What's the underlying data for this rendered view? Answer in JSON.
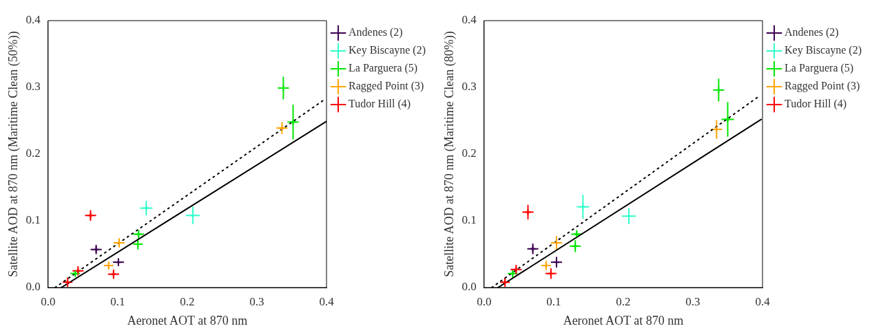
{
  "chart_data": [
    {
      "type": "scatter",
      "ylabel": "Satellite AOD at 870 nm (Maritime Clean (50%))",
      "xlabel": "Aeronet AOT at 870 nm",
      "xlim": [
        0,
        0.4
      ],
      "ylim": [
        0,
        0.4
      ],
      "xticks": [
        {
          "value": 0,
          "label": "0.0"
        },
        0.1,
        0.2,
        0.3,
        0.4
      ],
      "yticks": [
        {
          "value": 0,
          "label": "0.0"
        },
        0.1,
        0.2,
        0.3,
        0.4
      ],
      "grid": false,
      "legend": "top right",
      "marker": "cross",
      "series": [
        {
          "name": "Andenes (2)",
          "color": "#3c0050",
          "x": [
            0.069,
            0.101
          ],
          "values": [
            0.057,
            0.038
          ],
          "errors": [
            0.007,
            0.006
          ],
          "xerrors": [
            0.008,
            0.008
          ]
        },
        {
          "name": "Key Biscayne (2)",
          "color": "#33ffcc",
          "x": [
            0.141,
            0.208
          ],
          "values": [
            0.119,
            0.108
          ],
          "errors": [
            0.011,
            0.013
          ],
          "xerrors": [
            0.009,
            0.01
          ]
        },
        {
          "name": "La Parguera (5)",
          "color": "#00e600",
          "x": [
            0.039,
            0.129,
            0.13,
            0.338,
            0.352
          ],
          "values": [
            0.021,
            0.065,
            0.08,
            0.299,
            0.248
          ],
          "errors": [
            0.005,
            0.008,
            0.006,
            0.017,
            0.026
          ],
          "xerrors": [
            0.007,
            0.007,
            0.008,
            0.008,
            0.008
          ]
        },
        {
          "name": "Ragged Point (3)",
          "color": "#ffa500",
          "x": [
            0.087,
            0.102,
            0.336
          ],
          "values": [
            0.033,
            0.067,
            0.239
          ],
          "errors": [
            0.006,
            0.007,
            0.009
          ],
          "xerrors": [
            0.007,
            0.008,
            0.008
          ]
        },
        {
          "name": "Tudor Hill (4)",
          "color": "#ff0000",
          "x": [
            0.028,
            0.043,
            0.061,
            0.094
          ],
          "values": [
            0.008,
            0.025,
            0.108,
            0.02
          ],
          "errors": [
            0.007,
            0.007,
            0.008,
            0.007
          ],
          "xerrors": [
            0.007,
            0.008,
            0.008,
            0.008
          ]
        },
        {
          "type": "line",
          "color": "#000000",
          "line_style": "solid",
          "marker": "none",
          "x": [
            0.019,
            0.4
          ],
          "values": [
            0,
            0.249
          ]
        },
        {
          "type": "line",
          "color": "#000000",
          "line_style": "dotted",
          "marker": "none",
          "x": [
            0.01,
            0.396
          ],
          "values": [
            0,
            0.281
          ]
        }
      ]
    },
    {
      "type": "scatter",
      "ylabel": "Satellite AOD at 870 nm (Maritime Clean (80%))",
      "xlabel": "Aeronet AOT at 870 nm",
      "xlim": [
        0,
        0.4
      ],
      "ylim": [
        0,
        0.4
      ],
      "xticks": [
        {
          "value": 0,
          "label": "0.0"
        },
        0.1,
        0.2,
        0.3,
        0.4
      ],
      "yticks": [
        {
          "value": 0,
          "label": "0.0"
        },
        0.1,
        0.2,
        0.3,
        0.4
      ],
      "grid": false,
      "legend": "top right",
      "marker": "cross",
      "series": [
        {
          "name": "Andenes (2)",
          "color": "#3c0050",
          "x": [
            0.07,
            0.104
          ],
          "values": [
            0.058,
            0.038
          ],
          "errors": [
            0.008,
            0.008
          ],
          "xerrors": [
            0.008,
            0.008
          ]
        },
        {
          "name": "Key Biscayne (2)",
          "color": "#33ffcc",
          "x": [
            0.142,
            0.208
          ],
          "values": [
            0.121,
            0.107
          ],
          "errors": [
            0.018,
            0.012
          ],
          "xerrors": [
            0.009,
            0.01
          ]
        },
        {
          "name": "La Parguera (5)",
          "color": "#00e600",
          "x": [
            0.041,
            0.131,
            0.133,
            0.337,
            0.35
          ],
          "values": [
            0.021,
            0.062,
            0.08,
            0.296,
            0.252
          ],
          "errors": [
            0.006,
            0.009,
            0.006,
            0.017,
            0.026
          ],
          "xerrors": [
            0.007,
            0.008,
            0.008,
            0.008,
            0.009
          ]
        },
        {
          "name": "Ragged Point (3)",
          "color": "#ffa500",
          "x": [
            0.089,
            0.104,
            0.334
          ],
          "values": [
            0.033,
            0.067,
            0.237
          ],
          "errors": [
            0.007,
            0.01,
            0.014
          ],
          "xerrors": [
            0.007,
            0.008,
            0.008
          ]
        },
        {
          "name": "Tudor Hill (4)",
          "color": "#ff0000",
          "x": [
            0.03,
            0.046,
            0.063,
            0.096
          ],
          "values": [
            0.008,
            0.027,
            0.113,
            0.021
          ],
          "errors": [
            0.007,
            0.007,
            0.011,
            0.008
          ],
          "xerrors": [
            0.007,
            0.008,
            0.008,
            0.008
          ]
        },
        {
          "type": "line",
          "color": "#000000",
          "line_style": "solid",
          "marker": "none",
          "x": [
            0.02,
            0.398
          ],
          "values": [
            0,
            0.252
          ]
        },
        {
          "type": "line",
          "color": "#000000",
          "line_style": "dotted",
          "marker": "none",
          "x": [
            0.011,
            0.394
          ],
          "values": [
            0,
            0.286
          ]
        }
      ]
    }
  ]
}
